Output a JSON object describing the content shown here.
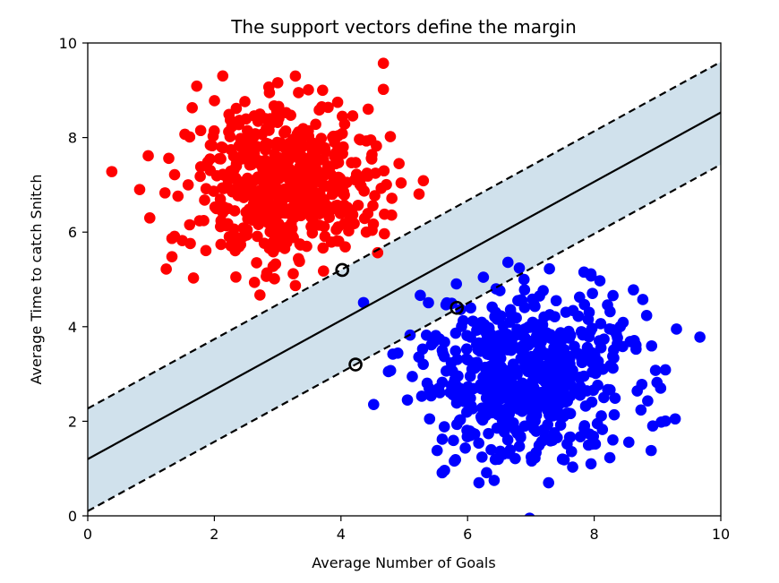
{
  "chart_data": {
    "type": "scatter",
    "title": "The support vectors define the margin",
    "xlabel": "Average Number of Goals",
    "ylabel": "Average Time to catch Snitch",
    "xlim": [
      0,
      10
    ],
    "ylim": [
      0,
      10
    ],
    "xticks": [
      "0",
      "2",
      "4",
      "6",
      "8",
      "10"
    ],
    "yticks": [
      "0",
      "2",
      "4",
      "6",
      "8",
      "10"
    ],
    "grid": false,
    "legend": false,
    "colors": {
      "class_a": "#ff0000",
      "class_b": "#0000ff",
      "margin_fill": "#d0e1ec",
      "lines": "#000000"
    },
    "series": [
      {
        "color": "#ff0000",
        "cluster": {
          "center": [
            3.05,
            7.05
          ],
          "spread": [
            0.75,
            0.8
          ],
          "count": 520
        },
        "points": [
          [
            0.38,
            7.28
          ],
          [
            0.82,
            6.9
          ],
          [
            0.98,
            6.3
          ],
          [
            1.22,
            6.83
          ],
          [
            1.28,
            7.56
          ],
          [
            1.33,
            5.48
          ],
          [
            1.65,
            8.63
          ],
          [
            1.67,
            5.03
          ],
          [
            2.72,
            4.67
          ],
          [
            2.34,
            5.05
          ],
          [
            3.28,
            9.3
          ],
          [
            3.33,
            8.95
          ],
          [
            3.71,
            9.0
          ],
          [
            2.87,
            8.95
          ],
          [
            4.67,
            9.57
          ],
          [
            4.67,
            9.02
          ],
          [
            4.78,
            8.02
          ],
          [
            4.49,
            7.64
          ],
          [
            4.95,
            7.04
          ],
          [
            4.8,
            6.36
          ],
          [
            3.28,
            4.87
          ],
          [
            4.4,
            6.0
          ],
          [
            4.43,
            8.6
          ]
        ]
      },
      {
        "color": "#0000ff",
        "cluster": {
          "center": [
            6.95,
            3.0
          ],
          "spread": [
            0.8,
            0.85
          ],
          "count": 600
        },
        "points": [
          [
            4.82,
            3.42
          ],
          [
            4.75,
            3.05
          ],
          [
            5.05,
            2.45
          ],
          [
            5.4,
            2.05
          ],
          [
            5.6,
            1.62
          ],
          [
            6.18,
            0.7
          ],
          [
            6.42,
            0.75
          ],
          [
            6.98,
            -0.05
          ],
          [
            7.28,
            0.7
          ],
          [
            7.95,
            1.1
          ],
          [
            8.9,
            1.38
          ],
          [
            9.05,
            2.7
          ],
          [
            9.28,
            2.05
          ],
          [
            9.67,
            3.78
          ],
          [
            9.3,
            3.95
          ],
          [
            8.62,
            4.78
          ],
          [
            8.09,
            4.97
          ],
          [
            6.45,
            4.8
          ],
          [
            6.9,
            4.78
          ],
          [
            7.4,
            4.55
          ],
          [
            5.6,
            3.5
          ],
          [
            5.35,
            3.82
          ],
          [
            8.45,
            3.58
          ]
        ]
      }
    ],
    "decision_boundary": {
      "slope": 0.733,
      "intercept": 1.2
    },
    "margins": [
      {
        "slope": 0.733,
        "intercept": 2.27
      },
      {
        "slope": 0.733,
        "intercept": 0.1
      }
    ],
    "support_vectors": [
      [
        4.02,
        5.2
      ],
      [
        5.83,
        4.4
      ],
      [
        4.23,
        3.2
      ]
    ]
  }
}
